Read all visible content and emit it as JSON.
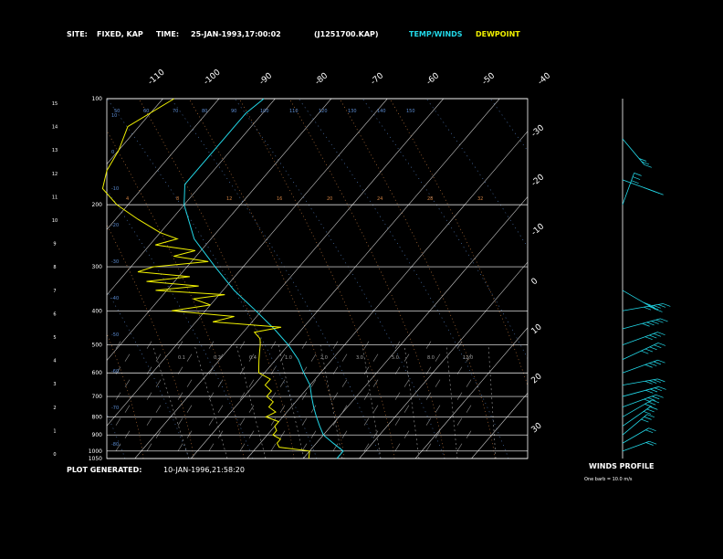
{
  "header": {
    "site_label": "SITE:",
    "site_value": "FIXED, KAP",
    "time_label": "TIME:",
    "time_value": "25-JAN-1993,17:00:02",
    "file_id": "(J1251700.KAP)",
    "legend_temp": "TEMP/WINDS",
    "legend_dew": "DEWPOINT"
  },
  "footer": {
    "generated_label": "PLOT GENERATED:",
    "generated_value": "10-JAN-1996,21:58:20",
    "winds_title": "WINDS PROFILE",
    "winds_note": "One barb = 10.0 m/s"
  },
  "colors": {
    "temp": "#22d8e8",
    "dewpoint": "#f0f000",
    "axes": "#ffffff",
    "isotherm": "#c8c8c8",
    "dry_adiabat": "#5a8ad0",
    "moist_adiabat": "#d08040",
    "mixing_ratio": "#a0a0a0",
    "background": "#000000"
  },
  "chart_data": {
    "type": "line",
    "subtype": "skew-T log-p sounding",
    "pressure_ticks": [
      "100",
      "200",
      "300",
      "400",
      "500",
      "600",
      "700",
      "800",
      "900",
      "1000",
      "1050"
    ],
    "height_ticks": [
      "0",
      "1",
      "2",
      "3",
      "4",
      "5",
      "6",
      "7",
      "8",
      "9",
      "10",
      "11",
      "12",
      "13",
      "14",
      "15"
    ],
    "isotherm_labels": [
      "-110",
      "-100",
      "-90",
      "-80",
      "-70",
      "-60",
      "-50",
      "-40"
    ],
    "right_temp_labels": [
      "-30",
      "-20",
      "-10",
      "0",
      "10",
      "20",
      "30"
    ],
    "dry_adiabat_labels": [
      "50",
      "60",
      "70",
      "80",
      "90",
      "100",
      "110",
      "120",
      "130",
      "140",
      "150"
    ],
    "moist_labels": [
      "4",
      "8",
      "12",
      "16",
      "20",
      "24",
      "28",
      "32"
    ],
    "mixing_labels": [
      "0.1",
      "0.2",
      "0.4",
      "1.0",
      "2.0",
      "3.0",
      "5.0",
      "8.0",
      "12.0"
    ],
    "left_theta_labels": [
      "10",
      "0",
      "-10",
      "-20",
      "-30",
      "-40",
      "-50",
      "-60",
      "-70",
      "-80"
    ],
    "ylim_hpa": [
      1050,
      100
    ],
    "xlim_degC_at_1050": [
      -35,
      40
    ],
    "series": [
      {
        "key": "temp",
        "points": [
          [
            1050,
            6
          ],
          [
            1000,
            6
          ],
          [
            950,
            3
          ],
          [
            900,
            0
          ],
          [
            850,
            -2
          ],
          [
            800,
            -4
          ],
          [
            750,
            -6
          ],
          [
            700,
            -8
          ],
          [
            650,
            -10
          ],
          [
            600,
            -13
          ],
          [
            550,
            -16
          ],
          [
            500,
            -20
          ],
          [
            450,
            -25
          ],
          [
            400,
            -31
          ],
          [
            350,
            -38
          ],
          [
            300,
            -45
          ],
          [
            250,
            -53
          ],
          [
            200,
            -60
          ],
          [
            175,
            -63
          ],
          [
            150,
            -63
          ],
          [
            125,
            -63
          ],
          [
            110,
            -63
          ],
          [
            100,
            -62
          ]
        ]
      },
      {
        "key": "dewpoint",
        "points": [
          [
            1050,
            1
          ],
          [
            1000,
            0
          ],
          [
            975,
            -6
          ],
          [
            950,
            -7
          ],
          [
            925,
            -7
          ],
          [
            900,
            -9
          ],
          [
            875,
            -9
          ],
          [
            850,
            -10
          ],
          [
            825,
            -10
          ],
          [
            800,
            -13
          ],
          [
            775,
            -12
          ],
          [
            750,
            -14
          ],
          [
            725,
            -14
          ],
          [
            700,
            -16
          ],
          [
            675,
            -16
          ],
          [
            650,
            -18
          ],
          [
            625,
            -18
          ],
          [
            600,
            -21
          ],
          [
            575,
            -22
          ],
          [
            550,
            -23
          ],
          [
            525,
            -24
          ],
          [
            500,
            -25
          ],
          [
            480,
            -26
          ],
          [
            460,
            -28
          ],
          [
            445,
            -24
          ],
          [
            430,
            -37
          ],
          [
            415,
            -34
          ],
          [
            400,
            -46
          ],
          [
            385,
            -40
          ],
          [
            370,
            -44
          ],
          [
            360,
            -39
          ],
          [
            350,
            -52
          ],
          [
            340,
            -45
          ],
          [
            330,
            -55
          ],
          [
            320,
            -48
          ],
          [
            310,
            -58
          ],
          [
            300,
            -56
          ],
          [
            290,
            -47
          ],
          [
            280,
            -54
          ],
          [
            270,
            -51
          ],
          [
            260,
            -59
          ],
          [
            250,
            -56
          ],
          [
            240,
            -60
          ],
          [
            220,
            -66
          ],
          [
            200,
            -72
          ],
          [
            180,
            -77
          ],
          [
            160,
            -79
          ],
          [
            140,
            -80
          ],
          [
            120,
            -82
          ],
          [
            100,
            -78
          ]
        ]
      }
    ],
    "winds": [
      {
        "p": 1000,
        "dir": 250,
        "kt": 15
      },
      {
        "p": 950,
        "dir": 240,
        "kt": 20
      },
      {
        "p": 900,
        "dir": 230,
        "kt": 25
      },
      {
        "p": 850,
        "dir": 235,
        "kt": 30
      },
      {
        "p": 800,
        "dir": 240,
        "kt": 30
      },
      {
        "p": 750,
        "dir": 250,
        "kt": 35
      },
      {
        "p": 700,
        "dir": 255,
        "kt": 40
      },
      {
        "p": 650,
        "dir": 260,
        "kt": 35
      },
      {
        "p": 600,
        "dir": 250,
        "kt": 40
      },
      {
        "p": 550,
        "dir": 245,
        "kt": 45
      },
      {
        "p": 500,
        "dir": 250,
        "kt": 40
      },
      {
        "p": 450,
        "dir": 255,
        "kt": 45
      },
      {
        "p": 400,
        "dir": 260,
        "kt": 50
      },
      {
        "p": 350,
        "dir": 300,
        "kt": 40
      },
      {
        "p": 200,
        "dir": 200,
        "kt": 30
      },
      {
        "p": 170,
        "dir": 290,
        "kt": 35
      },
      {
        "p": 130,
        "dir": 320,
        "kt": 30
      }
    ]
  }
}
